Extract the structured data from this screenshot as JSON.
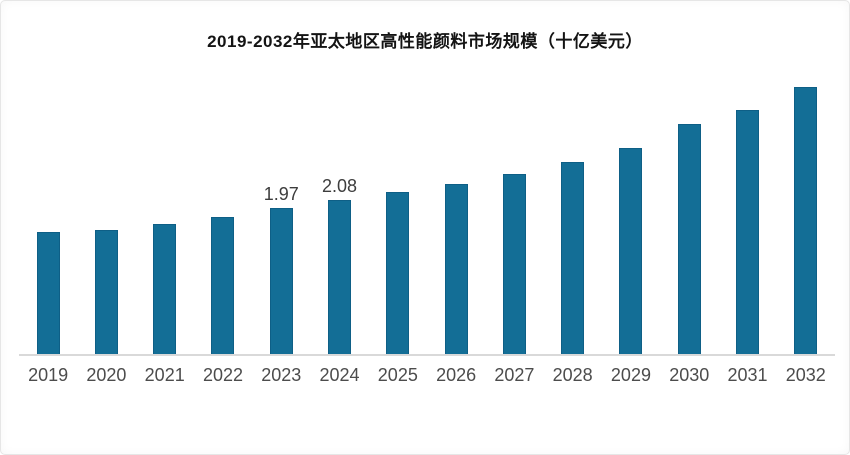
{
  "chart_data": {
    "type": "bar",
    "title": "2019-2032年亚太地区高性能颜料市场规模（十亿美元）",
    "unit": "十亿美元",
    "categories": [
      "2019",
      "2020",
      "2021",
      "2022",
      "2023",
      "2024",
      "2025",
      "2026",
      "2027",
      "2028",
      "2029",
      "2030",
      "2031",
      "2032"
    ],
    "values": [
      1.65,
      1.68,
      1.76,
      1.85,
      1.97,
      2.08,
      2.19,
      2.3,
      2.43,
      2.6,
      2.78,
      3.11,
      3.3,
      3.61
    ],
    "data_labels": [
      "",
      "",
      "",
      "",
      "1.97",
      "2.08",
      "",
      "",
      "",
      "",
      "",
      "",
      "",
      ""
    ],
    "xlabel": "",
    "ylabel": "",
    "ylim": [
      0,
      4
    ],
    "grid": false,
    "legend": "none",
    "y_axis_visible": false,
    "bar_color": "#136e96",
    "bar_edge_color": "#0e5f86",
    "axis_line_color": "#d9d9d9",
    "value_label_color": "#3d3d3d",
    "tick_label_color": "#4c4c4c",
    "title_color": "#141414",
    "background": "#ffffff"
  }
}
